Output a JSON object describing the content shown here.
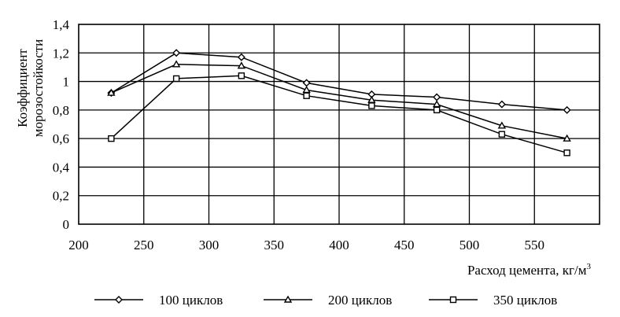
{
  "chart_data": {
    "type": "line",
    "title": "",
    "xlabel": "Расход цемента, кг/м",
    "xlabel_superscript": "3",
    "ylabel_lines": [
      "Коэффициент",
      "морозостойкости"
    ],
    "xlim": [
      200,
      600
    ],
    "ylim": [
      0,
      1.4
    ],
    "x_ticks": [
      "200",
      "250",
      "300",
      "350",
      "400",
      "450",
      "500",
      "550"
    ],
    "y_ticks": [
      "0",
      "0,2",
      "0,4",
      "0,6",
      "0,8",
      "1",
      "1,2",
      "1,4"
    ],
    "grid": true,
    "legend_position": "bottom",
    "x": [
      225,
      275,
      325,
      375,
      425,
      475,
      525,
      575
    ],
    "series": [
      {
        "name": "100 циклов",
        "marker": "diamond",
        "values": [
          0.92,
          1.2,
          1.17,
          0.99,
          0.91,
          0.89,
          0.84,
          0.8
        ]
      },
      {
        "name": "200 циклов",
        "marker": "triangle",
        "values": [
          0.92,
          1.12,
          1.11,
          0.94,
          0.87,
          0.84,
          0.69,
          0.6
        ]
      },
      {
        "name": "350 циклов",
        "marker": "square",
        "values": [
          0.6,
          1.02,
          1.04,
          0.9,
          0.83,
          0.8,
          0.63,
          0.5
        ]
      }
    ],
    "color": "#000000"
  }
}
